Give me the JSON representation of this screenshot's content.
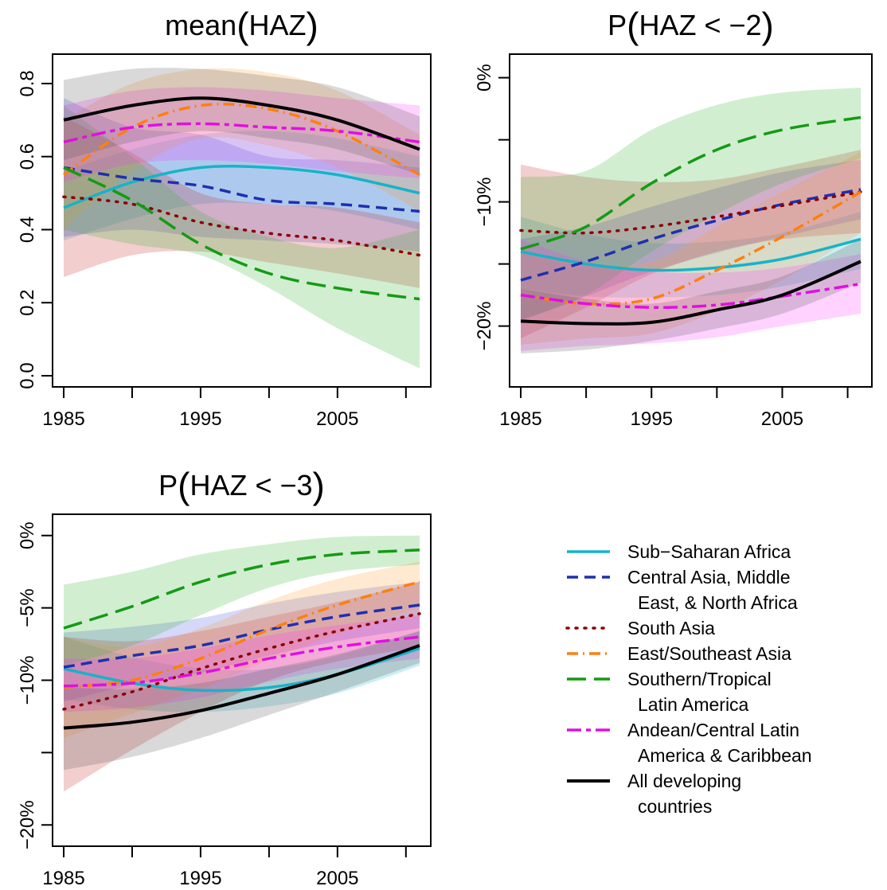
{
  "legend": {
    "entries": [
      {
        "series": "ssa",
        "lines": [
          "Sub−Saharan Africa"
        ]
      },
      {
        "series": "came",
        "lines": [
          "Central Asia, Middle",
          "East, & North Africa"
        ]
      },
      {
        "series": "sa",
        "lines": [
          "South Asia"
        ]
      },
      {
        "series": "esa",
        "lines": [
          "East/Southeast Asia"
        ]
      },
      {
        "series": "stla",
        "lines": [
          "Southern/Tropical",
          "Latin America"
        ]
      },
      {
        "series": "acla",
        "lines": [
          "Andean/Central Latin",
          "America & Caribbean"
        ]
      },
      {
        "series": "all",
        "lines": [
          "All developing",
          "countries"
        ]
      }
    ]
  },
  "series_styles": {
    "ssa": {
      "color": "#17b3c7",
      "fill": "#17b3c7",
      "dash": "solid",
      "width": 3.5
    },
    "came": {
      "color": "#1f2fb0",
      "fill": "#3f4fe0",
      "dash": "dashed",
      "width": 3.5
    },
    "sa": {
      "color": "#8b0000",
      "fill": "#c22020",
      "dash": "dotted",
      "width": 3.5
    },
    "esa": {
      "color": "#ff7f0e",
      "fill": "#ff9a2e",
      "dash": "dashdot",
      "width": 3.5
    },
    "stla": {
      "color": "#139b13",
      "fill": "#2cb02c",
      "dash": "longdash",
      "width": 3.5
    },
    "acla": {
      "color": "#e010e0",
      "fill": "#ff30ff",
      "dash": "twodash",
      "width": 3.5
    },
    "all": {
      "color": "#000000",
      "fill": "#505050",
      "dash": "solid",
      "width": 4
    }
  },
  "chart_data": [
    {
      "type": "line",
      "title": "mean(HAZ)",
      "title_parts": {
        "pre": "mean",
        "open": "(",
        "inner": "HAZ",
        "close": ")"
      },
      "x": [
        1985,
        1990,
        1995,
        2000,
        2005,
        2011
      ],
      "xlim": [
        1985,
        2011
      ],
      "ylim": [
        0.0,
        0.85
      ],
      "xticks": [
        1985,
        1990,
        1995,
        2000,
        2005,
        2010
      ],
      "xtick_labels": [
        {
          "value": 1985,
          "label": "1985"
        },
        {
          "value": 1995,
          "label": "1995"
        },
        {
          "value": 2005,
          "label": "2005"
        }
      ],
      "yticks": [
        {
          "value": 0.0,
          "label": "0.0"
        },
        {
          "value": 0.2,
          "label": "0.2"
        },
        {
          "value": 0.4,
          "label": "0.4"
        },
        {
          "value": 0.6,
          "label": "0.6"
        },
        {
          "value": 0.8,
          "label": "0.8"
        }
      ],
      "series": [
        {
          "id": "ssa",
          "values": [
            0.46,
            0.53,
            0.57,
            0.57,
            0.55,
            0.5
          ],
          "lower": [
            0.37,
            0.43,
            0.47,
            0.47,
            0.45,
            0.4
          ],
          "upper": [
            0.56,
            0.62,
            0.66,
            0.67,
            0.65,
            0.6
          ]
        },
        {
          "id": "came",
          "values": [
            0.57,
            0.54,
            0.52,
            0.48,
            0.47,
            0.45
          ],
          "lower": [
            0.38,
            0.4,
            0.38,
            0.37,
            0.36,
            0.34
          ],
          "upper": [
            0.76,
            0.68,
            0.66,
            0.6,
            0.59,
            0.57
          ]
        },
        {
          "id": "sa",
          "values": [
            0.49,
            0.47,
            0.42,
            0.39,
            0.37,
            0.33
          ],
          "lower": [
            0.27,
            0.33,
            0.34,
            0.31,
            0.28,
            0.24
          ],
          "upper": [
            0.71,
            0.61,
            0.5,
            0.47,
            0.46,
            0.42
          ]
        },
        {
          "id": "esa",
          "values": [
            0.55,
            0.68,
            0.74,
            0.73,
            0.67,
            0.55
          ],
          "lower": [
            0.4,
            0.56,
            0.65,
            0.63,
            0.57,
            0.45
          ],
          "upper": [
            0.7,
            0.8,
            0.84,
            0.83,
            0.78,
            0.66
          ]
        },
        {
          "id": "stla",
          "values": [
            0.57,
            0.48,
            0.36,
            0.28,
            0.24,
            0.21
          ],
          "lower": [
            0.4,
            0.36,
            0.33,
            0.24,
            0.13,
            0.02
          ],
          "upper": [
            0.74,
            0.6,
            0.45,
            0.38,
            0.35,
            0.4
          ]
        },
        {
          "id": "acla",
          "values": [
            0.64,
            0.68,
            0.69,
            0.68,
            0.67,
            0.64
          ],
          "lower": [
            0.53,
            0.58,
            0.59,
            0.58,
            0.56,
            0.54
          ],
          "upper": [
            0.74,
            0.78,
            0.79,
            0.78,
            0.76,
            0.74
          ]
        },
        {
          "id": "all",
          "values": [
            0.7,
            0.74,
            0.76,
            0.74,
            0.7,
            0.62
          ],
          "lower": [
            0.59,
            0.64,
            0.67,
            0.65,
            0.62,
            0.55
          ],
          "upper": [
            0.81,
            0.84,
            0.84,
            0.82,
            0.79,
            0.71
          ]
        }
      ]
    },
    {
      "type": "line",
      "title": "P(HAZ < −2)",
      "title_parts": {
        "pre": "P",
        "open": "(",
        "inner": "HAZ < −2",
        "close": ")"
      },
      "x": [
        1985,
        1990,
        1995,
        2000,
        2005,
        2011
      ],
      "xlim": [
        1985,
        2011
      ],
      "ylim": [
        -24,
        1
      ],
      "xticks": [
        1985,
        1990,
        1995,
        2000,
        2005,
        2010
      ],
      "xtick_labels": [
        {
          "value": 1985,
          "label": "1985"
        },
        {
          "value": 1995,
          "label": "1995"
        },
        {
          "value": 2005,
          "label": "2005"
        }
      ],
      "yticks": [
        {
          "value": 0,
          "label": "0%"
        },
        {
          "value": -5,
          "label": ""
        },
        {
          "value": -10,
          "label": "−10%"
        },
        {
          "value": -15,
          "label": ""
        },
        {
          "value": -20,
          "label": "−20%"
        }
      ],
      "series": [
        {
          "id": "ssa",
          "values": [
            -14.0,
            -15.0,
            -15.5,
            -15.3,
            -14.6,
            -13.0
          ],
          "lower": [
            -17.0,
            -17.6,
            -17.7,
            -17.5,
            -16.8,
            -15.4
          ],
          "upper": [
            -11.2,
            -12.6,
            -13.3,
            -13.2,
            -12.5,
            -10.8
          ]
        },
        {
          "id": "came",
          "values": [
            -16.3,
            -14.8,
            -13.0,
            -11.5,
            -10.2,
            -9.0
          ],
          "lower": [
            -19.6,
            -17.6,
            -15.6,
            -14.1,
            -12.8,
            -11.4
          ],
          "upper": [
            -13.0,
            -12.0,
            -10.4,
            -8.9,
            -7.6,
            -6.6
          ]
        },
        {
          "id": "sa",
          "values": [
            -12.3,
            -12.5,
            -12.0,
            -11.2,
            -10.3,
            -9.2
          ],
          "lower": [
            -21.0,
            -18.5,
            -15.8,
            -14.0,
            -13.0,
            -12.5
          ],
          "upper": [
            -7.0,
            -8.0,
            -8.4,
            -8.2,
            -7.2,
            -5.8
          ]
        },
        {
          "id": "esa",
          "values": [
            -17.5,
            -18.2,
            -17.8,
            -15.5,
            -12.8,
            -9.2
          ],
          "lower": [
            -21.5,
            -21.0,
            -20.6,
            -18.8,
            -16.3,
            -12.5
          ],
          "upper": [
            -13.8,
            -15.0,
            -14.8,
            -12.0,
            -9.2,
            -6.0
          ]
        },
        {
          "id": "stla",
          "values": [
            -13.8,
            -12.0,
            -8.5,
            -5.8,
            -4.2,
            -3.2
          ],
          "lower": [
            -19.5,
            -17.5,
            -14.0,
            -11.0,
            -8.5,
            -6.5
          ],
          "upper": [
            -8.0,
            -7.5,
            -4.2,
            -2.2,
            -1.2,
            -0.8
          ]
        },
        {
          "id": "acla",
          "values": [
            -17.5,
            -18.2,
            -18.5,
            -18.3,
            -17.6,
            -16.6
          ],
          "lower": [
            -22.0,
            -21.6,
            -21.4,
            -20.9,
            -20.0,
            -19.0
          ],
          "upper": [
            -13.0,
            -14.8,
            -15.6,
            -15.7,
            -15.3,
            -14.2
          ]
        },
        {
          "id": "all",
          "values": [
            -19.6,
            -19.8,
            -19.7,
            -18.7,
            -17.5,
            -14.8
          ],
          "lower": [
            -22.2,
            -21.9,
            -21.2,
            -20.2,
            -19.0,
            -16.5
          ],
          "upper": [
            -17.0,
            -17.8,
            -18.2,
            -17.2,
            -16.0,
            -13.0
          ]
        }
      ]
    },
    {
      "type": "line",
      "title": "P(HAZ < −3)",
      "title_parts": {
        "pre": "P",
        "open": "(",
        "inner": "HAZ < −3",
        "close": ")"
      },
      "x": [
        1985,
        1990,
        1995,
        2000,
        2005,
        2011
      ],
      "xlim": [
        1985,
        2011
      ],
      "ylim": [
        -20.7,
        0.7
      ],
      "xticks": [
        1985,
        1990,
        1995,
        2000,
        2005,
        2010
      ],
      "xtick_labels": [
        {
          "value": 1985,
          "label": "1985"
        },
        {
          "value": 1995,
          "label": "1995"
        },
        {
          "value": 2005,
          "label": "2005"
        }
      ],
      "yticks": [
        {
          "value": 0,
          "label": "0%"
        },
        {
          "value": -5,
          "label": "−5%"
        },
        {
          "value": -10,
          "label": "−10%"
        },
        {
          "value": -15,
          "label": ""
        },
        {
          "value": -20,
          "label": "−20%"
        }
      ],
      "series": [
        {
          "id": "ssa",
          "values": [
            -9.2,
            -10.2,
            -10.7,
            -10.5,
            -9.6,
            -7.8
          ],
          "lower": [
            -11.3,
            -12.0,
            -12.2,
            -11.8,
            -10.9,
            -9.0
          ],
          "upper": [
            -7.0,
            -8.4,
            -9.2,
            -9.2,
            -8.3,
            -6.6
          ]
        },
        {
          "id": "came",
          "values": [
            -9.1,
            -8.3,
            -7.6,
            -6.5,
            -5.6,
            -4.8
          ],
          "lower": [
            -11.5,
            -10.3,
            -9.5,
            -8.3,
            -7.3,
            -6.4
          ],
          "upper": [
            -6.7,
            -6.3,
            -5.7,
            -4.7,
            -3.9,
            -3.2
          ]
        },
        {
          "id": "sa",
          "values": [
            -12.0,
            -10.8,
            -9.2,
            -7.8,
            -6.6,
            -5.4
          ],
          "lower": [
            -17.7,
            -14.8,
            -12.2,
            -10.0,
            -8.7,
            -7.7
          ],
          "upper": [
            -7.0,
            -7.3,
            -6.6,
            -5.6,
            -4.6,
            -3.2
          ]
        },
        {
          "id": "esa",
          "values": [
            -10.5,
            -10.0,
            -8.5,
            -6.5,
            -4.8,
            -3.2
          ],
          "lower": [
            -14.0,
            -12.3,
            -10.6,
            -8.6,
            -6.8,
            -5.0
          ],
          "upper": [
            -7.0,
            -7.7,
            -6.4,
            -4.5,
            -3.0,
            -1.8
          ]
        },
        {
          "id": "stla",
          "values": [
            -6.4,
            -4.9,
            -3.2,
            -2.0,
            -1.3,
            -1.0
          ],
          "lower": [
            -9.0,
            -7.6,
            -5.5,
            -3.6,
            -2.5,
            -2.0
          ],
          "upper": [
            -3.4,
            -2.5,
            -1.3,
            -0.6,
            -0.1,
            0.0
          ]
        },
        {
          "id": "acla",
          "values": [
            -10.4,
            -10.2,
            -9.5,
            -8.5,
            -7.7,
            -7.0
          ],
          "lower": [
            -12.2,
            -11.9,
            -11.2,
            -10.1,
            -9.2,
            -8.5
          ],
          "upper": [
            -8.5,
            -8.5,
            -7.8,
            -6.9,
            -6.2,
            -5.5
          ]
        },
        {
          "id": "all",
          "values": [
            -13.3,
            -12.9,
            -12.1,
            -10.9,
            -9.6,
            -7.6
          ],
          "lower": [
            -16.2,
            -15.3,
            -14.0,
            -12.4,
            -10.8,
            -8.8
          ],
          "upper": [
            -10.5,
            -10.6,
            -10.2,
            -9.2,
            -8.2,
            -6.6
          ]
        }
      ]
    }
  ]
}
